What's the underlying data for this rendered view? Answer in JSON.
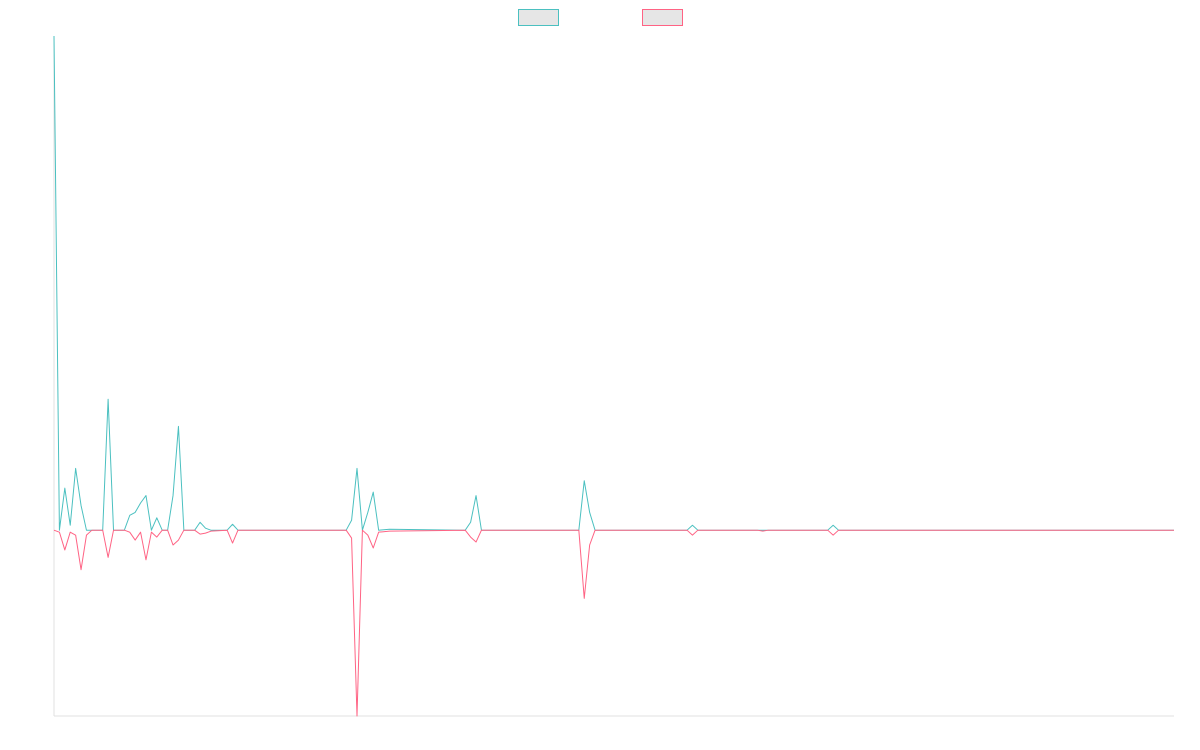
{
  "chart_data": {
    "type": "line",
    "xlim": [
      0,
      207
    ],
    "ylim": [
      -37.6,
      100
    ],
    "legend": "top",
    "series": [
      {
        "color": "#4bc0c0",
        "x": [
          0,
          1,
          2,
          3,
          4,
          5,
          6,
          9,
          10,
          11,
          13,
          14,
          15,
          16,
          17,
          18,
          19,
          20,
          21,
          22,
          23,
          24,
          26,
          27,
          28,
          29,
          32,
          33,
          34,
          54,
          55,
          56,
          57,
          58,
          59,
          60,
          62,
          76,
          77,
          78,
          79,
          97,
          98,
          99,
          100,
          117,
          118,
          119,
          143,
          144,
          145,
          207
        ],
        "values": [
          100,
          0,
          8.5,
          1,
          12.5,
          5,
          0,
          0,
          26.5,
          0,
          0,
          3,
          3.6,
          5.5,
          7,
          0,
          2.5,
          0,
          0,
          7,
          21,
          0,
          0,
          1.6,
          0.4,
          0,
          0,
          1.2,
          0,
          0,
          2,
          12.5,
          0,
          3.6,
          7.7,
          0,
          0.2,
          0,
          1.6,
          7,
          0,
          0,
          10,
          3.6,
          0,
          0,
          1,
          0,
          0,
          1,
          0,
          0
        ]
      },
      {
        "color": "#ff6384",
        "x": [
          0,
          1,
          2,
          3,
          4,
          5,
          6,
          7,
          8,
          9,
          10,
          11,
          13,
          14,
          15,
          16,
          17,
          18,
          19,
          20,
          21,
          22,
          23,
          24,
          26,
          27,
          28,
          29,
          32,
          33,
          34,
          54,
          55,
          56,
          57,
          58,
          59,
          60,
          62,
          76,
          77,
          78,
          79,
          97,
          98,
          99,
          100,
          117,
          118,
          119,
          130,
          131,
          132,
          143,
          144,
          145,
          207
        ],
        "values": [
          0,
          -0.4,
          -4,
          -0.4,
          -1,
          -8,
          -1,
          0,
          0,
          0,
          -5.5,
          0,
          0,
          -0.4,
          -2,
          -0.4,
          -6,
          -0.4,
          -1.4,
          0,
          0,
          -3,
          -2,
          0,
          0,
          -0.8,
          -0.6,
          -0.2,
          0,
          -2.6,
          0,
          0,
          -1.6,
          -37.6,
          0,
          -1,
          -3.6,
          -0.4,
          -0.2,
          0,
          -1.4,
          -2.4,
          0,
          0,
          -13.8,
          -3,
          0,
          0,
          -1,
          0,
          0,
          -0.2,
          0,
          0,
          -1,
          0,
          0
        ]
      }
    ]
  }
}
